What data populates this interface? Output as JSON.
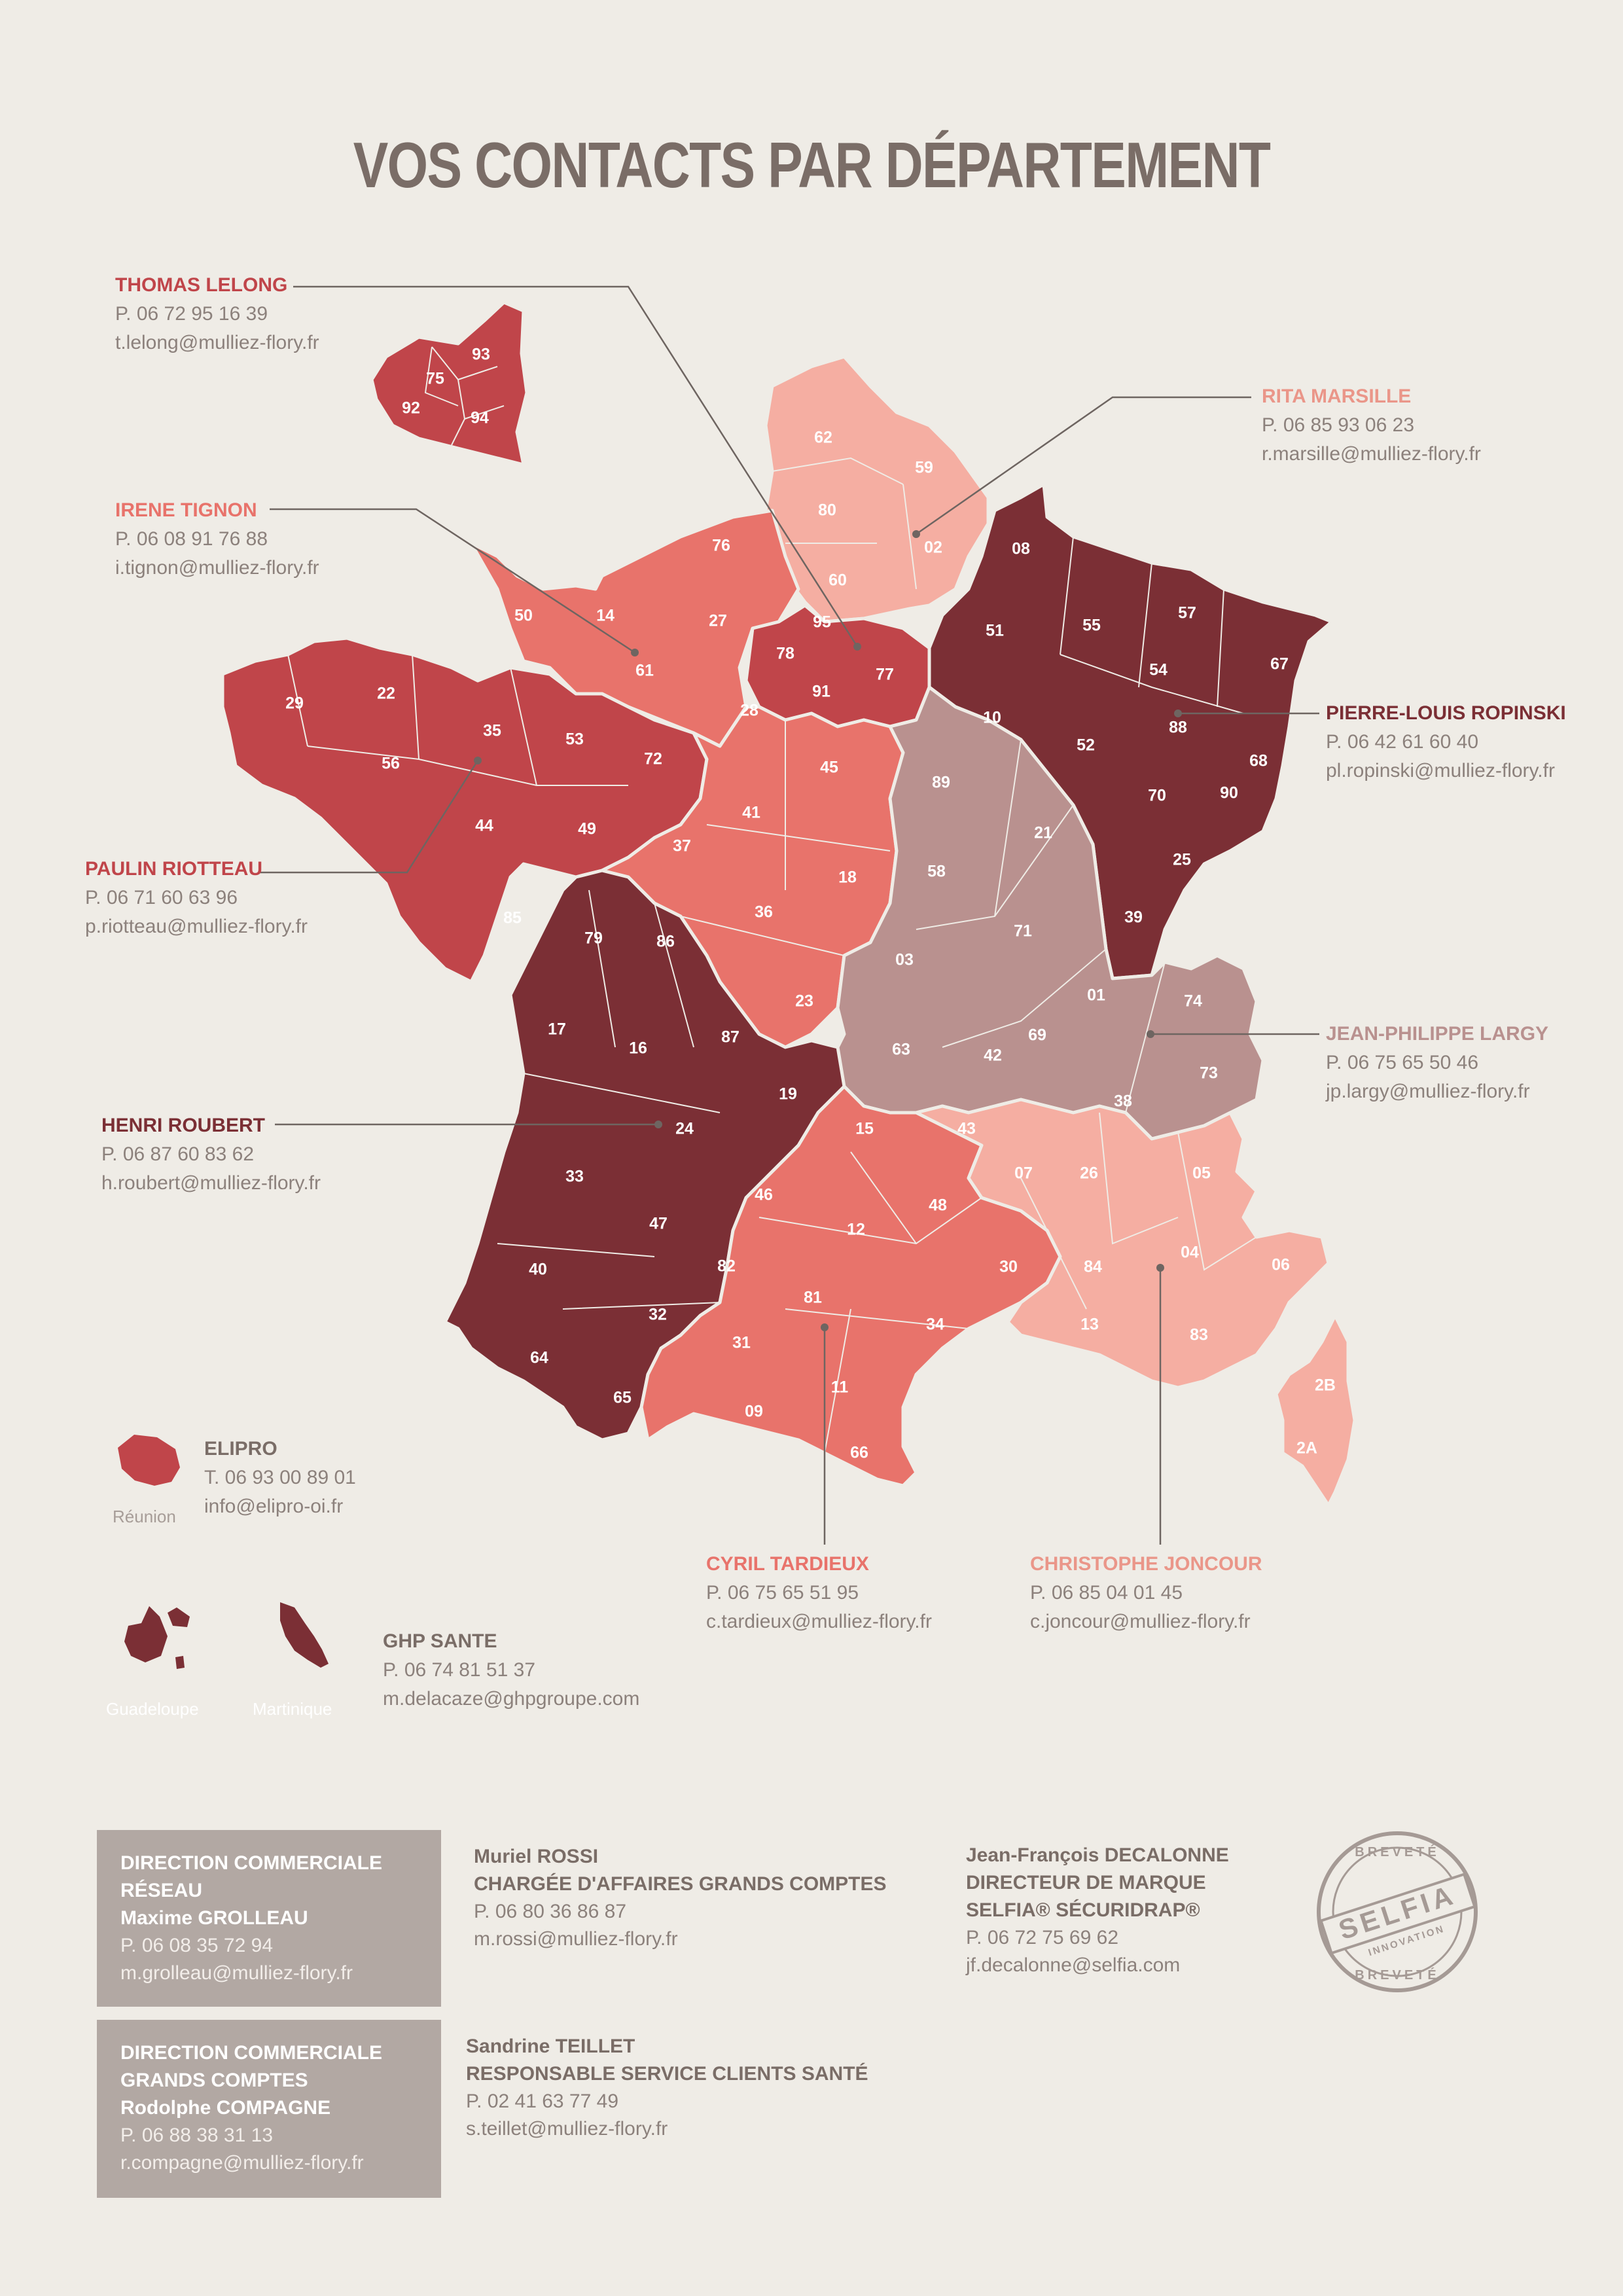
{
  "title": "VOS CONTACTS PAR DÉPARTEMENT",
  "colors": {
    "background": "#efece6",
    "north_east_dark": "#7b2f35",
    "west_red": "#c0454a",
    "center_salmon": "#e8736b",
    "south_east_light": "#f5aea2",
    "north_light": "#f5aea2",
    "rhone_alpes_mauve": "#b9918f"
  },
  "contacts": {
    "lelong": {
      "name": "THOMAS LELONG",
      "phone": "P. 06 72 95 16 39",
      "email": "t.lelong@mulliez-flory.fr",
      "color": "#c0454a"
    },
    "marsille": {
      "name": "RITA MARSILLE",
      "phone": "P. 06 85 93 06 23",
      "email": "r.marsille@mulliez-flory.fr",
      "color": "#ea9689"
    },
    "tignon": {
      "name": "IRENE TIGNON",
      "phone": "P. 06 08 91 76 88",
      "email": "i.tignon@mulliez-flory.fr",
      "color": "#e8736b"
    },
    "ropinski": {
      "name": "PIERRE-LOUIS ROPINSKI",
      "phone": "P. 06 42 61 60 40",
      "email": "pl.ropinski@mulliez-flory.fr",
      "color": "#7b2f35"
    },
    "riotteau": {
      "name": "PAULIN RIOTTEAU",
      "phone": "P. 06 71 60 63 96",
      "email": "p.riotteau@mulliez-flory.fr",
      "color": "#c0454a"
    },
    "largy": {
      "name": "JEAN-PHILIPPE LARGY",
      "phone": "P. 06 75 65 50 46",
      "email": "jp.largy@mulliez-flory.fr",
      "color": "#b9918f"
    },
    "roubert": {
      "name": "HENRI ROUBERT",
      "phone": "P. 06 87 60 83 62",
      "email": "h.roubert@mulliez-flory.fr",
      "color": "#7b2f35"
    },
    "tardieux": {
      "name": "CYRIL TARDIEUX",
      "phone": "P. 06 75 65 51 95",
      "email": "c.tardieux@mulliez-flory.fr",
      "color": "#e8736b"
    },
    "joncour": {
      "name": "CHRISTOPHE JONCOUR",
      "phone": "P. 06 85 04 01 45",
      "email": "c.joncour@mulliez-flory.fr",
      "color": "#ea9689"
    },
    "elipro": {
      "name": "ELIPRO",
      "phone": "T. 06 93 00 89 01",
      "email": "info@elipro-oi.fr",
      "color": "#7a6d67"
    },
    "ghp": {
      "name": "GHP SANTE",
      "phone": "P. 06 74 81 51 37",
      "email": "m.delacaze@ghpgroupe.com",
      "color": "#7a6d67"
    }
  },
  "overseas": {
    "reunion": "Réunion",
    "guadeloupe": "Guadeloupe",
    "martinique": "Martinique"
  },
  "departments": [
    "93",
    "75",
    "92",
    "94",
    "62",
    "59",
    "80",
    "02",
    "60",
    "08",
    "76",
    "14",
    "50",
    "27",
    "95",
    "78",
    "77",
    "91",
    "61",
    "51",
    "55",
    "57",
    "67",
    "29",
    "22",
    "35",
    "53",
    "28",
    "72",
    "45",
    "10",
    "54",
    "88",
    "52",
    "68",
    "56",
    "44",
    "49",
    "41",
    "89",
    "90",
    "70",
    "21",
    "37",
    "18",
    "58",
    "25",
    "85",
    "79",
    "86",
    "36",
    "71",
    "39",
    "03",
    "01",
    "74",
    "23",
    "17",
    "16",
    "87",
    "63",
    "42",
    "69",
    "73",
    "19",
    "24",
    "38",
    "15",
    "43",
    "07",
    "26",
    "05",
    "33",
    "46",
    "48",
    "47",
    "12",
    "82",
    "30",
    "84",
    "04",
    "06",
    "40",
    "81",
    "32",
    "34",
    "31",
    "13",
    "83",
    "2B",
    "11",
    "64",
    "09",
    "65",
    "66",
    "2A"
  ],
  "footer": {
    "box1": {
      "line1": "DIRECTION COMMERCIALE",
      "line2": "RÉSEAU",
      "name": "Maxime GROLLEAU",
      "phone": "P. 06 08 35 72 94",
      "email": "m.grolleau@mulliez-flory.fr"
    },
    "box2": {
      "line1": "DIRECTION COMMERCIALE",
      "line2": "GRANDS COMPTES",
      "name": "Rodolphe COMPAGNE",
      "phone": "P. 06 88 38 31 13",
      "email": "r.compagne@mulliez-flory.fr"
    },
    "rossi": {
      "name": "Muriel ROSSI",
      "role": "CHARGÉE D'AFFAIRES GRANDS COMPTES",
      "phone": "P. 06 80 36 86 87",
      "email": "m.rossi@mulliez-flory.fr"
    },
    "teillet": {
      "name": "Sandrine TEILLET",
      "role": "RESPONSABLE SERVICE CLIENTS SANTÉ",
      "phone": "P. 02 41 63 77 49",
      "email": "s.teillet@mulliez-flory.fr"
    },
    "decalonne": {
      "name": "Jean-François DECALONNE",
      "role1": "DIRECTEUR DE MARQUE",
      "role2": "SELFIA® SÉCURIDRAP®",
      "phone": "P. 06 72 75 69 62",
      "email": "jf.decalonne@selfia.com"
    }
  },
  "stamp": {
    "top": "BREVETÉ",
    "brand": "SELFIA",
    "middle": "INNOVATION",
    "bottom": "BREVETÉ"
  }
}
